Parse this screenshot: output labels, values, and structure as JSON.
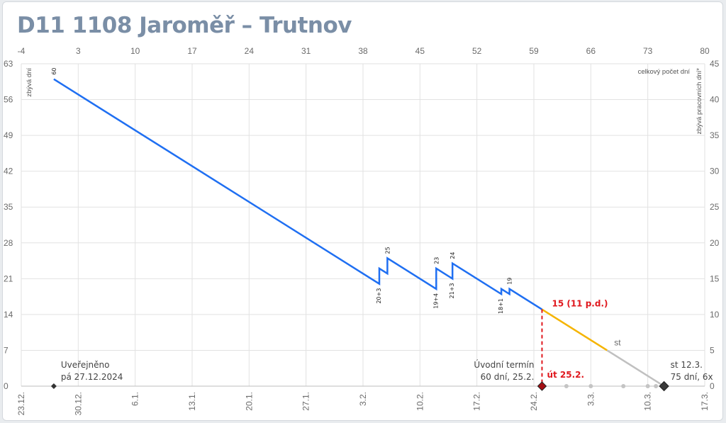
{
  "title": "D11 1108 Jaroměř – Trutnov",
  "chart_data": {
    "type": "line",
    "title": "D11 1108 Jaroměř – Trutnov",
    "ylabel_left": "zbývá dní",
    "ylabel_right": "zbývá pracovních dní*",
    "right_top_label": "celkový počet dní",
    "x_top": {
      "ticks": [
        -4,
        3,
        10,
        17,
        24,
        31,
        38,
        45,
        52,
        59,
        66,
        73,
        80
      ]
    },
    "x_bottom": {
      "ticks": [
        "23.12.",
        "30.12.",
        "6.1.",
        "13.1.",
        "20.1.",
        "27.1.",
        "3.2.",
        "10.2.",
        "17.2.",
        "24.2.",
        "3.3.",
        "10.3.",
        "17.3."
      ]
    },
    "y_left": {
      "min": 0,
      "max": 63,
      "ticks": [
        0,
        7,
        14,
        21,
        28,
        35,
        42,
        49,
        56,
        63
      ]
    },
    "y_right": {
      "min": 0,
      "max": 45,
      "ticks": [
        0,
        5,
        10,
        15,
        20,
        25,
        30,
        35,
        40,
        45
      ]
    },
    "grid": true,
    "series": [
      {
        "color": "#1f6ff2",
        "points": [
          {
            "x": 0,
            "y": 60
          },
          {
            "x": 40,
            "y": 20
          },
          {
            "x": 40,
            "y": 23
          },
          {
            "x": 41,
            "y": 22
          },
          {
            "x": 41,
            "y": 25
          },
          {
            "x": 47,
            "y": 19
          },
          {
            "x": 47,
            "y": 23
          },
          {
            "x": 49,
            "y": 21
          },
          {
            "x": 49,
            "y": 24
          },
          {
            "x": 55,
            "y": 18
          },
          {
            "x": 55,
            "y": 19
          },
          {
            "x": 56,
            "y": 18
          },
          {
            "x": 56,
            "y": 19
          },
          {
            "x": 60,
            "y": 15
          }
        ]
      },
      {
        "color": "#f5b400",
        "points": [
          {
            "x": 60,
            "y": 15
          },
          {
            "x": 68,
            "y": 7
          }
        ]
      },
      {
        "color": "#c0c0c0",
        "points": [
          {
            "x": 68,
            "y": 7
          },
          {
            "x": 75,
            "y": 0
          }
        ]
      }
    ],
    "point_labels": [
      {
        "x": 0,
        "y": 60,
        "text": "60"
      },
      {
        "x": 40,
        "y": 20,
        "text": "20+3"
      },
      {
        "x": 41,
        "y": 25,
        "text": "25"
      },
      {
        "x": 47,
        "y": 19,
        "text": "19+4"
      },
      {
        "x": 47,
        "y": 23,
        "text": "23"
      },
      {
        "x": 49,
        "y": 21,
        "text": "21+3"
      },
      {
        "x": 49,
        "y": 24,
        "text": "24"
      },
      {
        "x": 55,
        "y": 18,
        "text": "18+1"
      },
      {
        "x": 56,
        "y": 19,
        "text": "19"
      }
    ],
    "markers": [
      {
        "x": 0,
        "y": 0,
        "lines": [
          "Uveřejněno",
          "pá 27.12.2024"
        ],
        "style": "small-black"
      },
      {
        "x": 60,
        "y": 0,
        "lines": [
          "Úvodní termín",
          "60 dní, 25.2."
        ],
        "style": "red-diamond"
      },
      {
        "x": 75,
        "y": 0,
        "lines": [
          "st 12.3.",
          "75 dní, 6x"
        ],
        "style": "big-black"
      }
    ],
    "grey_dots_x": [
      63,
      66,
      70,
      73,
      74
    ],
    "current": {
      "x": 60,
      "y": 15,
      "label": "15 (11 p.d.)",
      "date_label": "út 25.2."
    },
    "st_label": "st"
  }
}
